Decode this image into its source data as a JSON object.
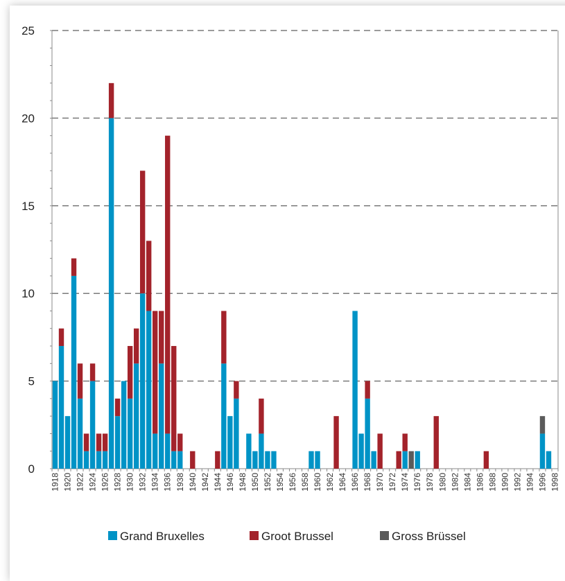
{
  "chart_data": {
    "type": "bar",
    "stacked": true,
    "title": "",
    "xlabel": "",
    "ylabel": "",
    "ylim": [
      0,
      25
    ],
    "yticks": [
      "0",
      "5",
      "10",
      "15",
      "20",
      "25"
    ],
    "grid": true,
    "legend_position": "bottom",
    "x_tick_labels": [
      "1918",
      "1920",
      "1922",
      "1924",
      "1926",
      "1928",
      "1930",
      "1932",
      "1934",
      "1936",
      "1938",
      "1940",
      "1942",
      "1944",
      "1946",
      "1948",
      "1950",
      "1952",
      "1954",
      "1956",
      "1958",
      "1960",
      "1962",
      "1964",
      "1966",
      "1968",
      "1970",
      "1972",
      "1974",
      "1976",
      "1978",
      "1980",
      "1982",
      "1984",
      "1986",
      "1988",
      "1990",
      "1992",
      "1994",
      "1996",
      "1998"
    ],
    "categories": [
      1918,
      1919,
      1920,
      1921,
      1922,
      1923,
      1924,
      1925,
      1926,
      1927,
      1928,
      1929,
      1930,
      1931,
      1932,
      1933,
      1934,
      1935,
      1936,
      1937,
      1938,
      1939,
      1940,
      1941,
      1942,
      1943,
      1944,
      1945,
      1946,
      1947,
      1948,
      1949,
      1950,
      1951,
      1952,
      1953,
      1954,
      1955,
      1956,
      1957,
      1958,
      1959,
      1960,
      1961,
      1962,
      1963,
      1964,
      1965,
      1966,
      1967,
      1968,
      1969,
      1970,
      1971,
      1972,
      1973,
      1974,
      1975,
      1976,
      1977,
      1978,
      1979,
      1980,
      1981,
      1982,
      1983,
      1984,
      1985,
      1986,
      1987,
      1988,
      1989,
      1990,
      1991,
      1992,
      1993,
      1994,
      1995,
      1996,
      1997,
      1998
    ],
    "series": [
      {
        "name": "Grand Bruxelles",
        "color": "#0093C6",
        "values": [
          5,
          7,
          3,
          11,
          4,
          1,
          5,
          1,
          1,
          20,
          3,
          5,
          4,
          6,
          10,
          9,
          2,
          6,
          2,
          1,
          1,
          0,
          0,
          0,
          0,
          0,
          0,
          6,
          3,
          4,
          0,
          2,
          1,
          2,
          1,
          1,
          0,
          0,
          0,
          0,
          0,
          1,
          1,
          0,
          0,
          0,
          0,
          0,
          9,
          2,
          4,
          1,
          0,
          0,
          0,
          0,
          1,
          0,
          1,
          0,
          0,
          0,
          0,
          0,
          0,
          0,
          0,
          0,
          0,
          0,
          0,
          0,
          0,
          0,
          0,
          0,
          0,
          0,
          2,
          1,
          0
        ]
      },
      {
        "name": "Groot Brussel",
        "color": "#A3232B",
        "values": [
          0,
          1,
          0,
          1,
          2,
          1,
          1,
          1,
          1,
          2,
          1,
          0,
          3,
          2,
          7,
          4,
          7,
          3,
          17,
          6,
          1,
          0,
          1,
          0,
          0,
          0,
          1,
          3,
          0,
          1,
          0,
          0,
          0,
          2,
          0,
          0,
          0,
          0,
          0,
          0,
          0,
          0,
          0,
          0,
          0,
          3,
          0,
          0,
          0,
          0,
          1,
          0,
          2,
          0,
          0,
          1,
          1,
          0,
          0,
          0,
          0,
          3,
          0,
          0,
          0,
          0,
          0,
          0,
          0,
          1,
          0,
          0,
          0,
          0,
          0,
          0,
          0,
          0,
          0,
          0,
          0
        ]
      },
      {
        "name": "Gross Brüssel",
        "color": "#5B5B5B",
        "values": [
          0,
          0,
          0,
          0,
          0,
          0,
          0,
          0,
          0,
          0,
          0,
          0,
          0,
          0,
          0,
          0,
          0,
          0,
          0,
          0,
          0,
          0,
          0,
          0,
          0,
          0,
          0,
          0,
          0,
          0,
          0,
          0,
          0,
          0,
          0,
          0,
          0,
          0,
          0,
          0,
          0,
          0,
          0,
          0,
          0,
          0,
          0,
          0,
          0,
          0,
          0,
          0,
          0,
          0,
          0,
          0,
          0,
          1,
          0,
          0,
          0,
          0,
          0,
          0,
          0,
          0,
          0,
          0,
          0,
          0,
          0,
          0,
          0,
          0,
          0,
          0,
          0,
          0,
          1,
          0,
          0
        ]
      }
    ]
  }
}
